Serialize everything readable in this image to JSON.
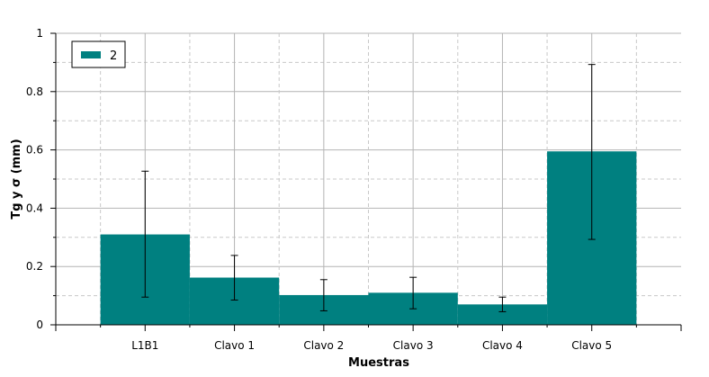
{
  "chart_data": {
    "type": "bar",
    "title": "",
    "xlabel": "Muestras",
    "ylabel": "Tg  y σ (mm)",
    "categories": [
      "L1B1",
      "Clavo 1",
      "Clavo 2",
      "Clavo 3",
      "Clavo 4",
      "Clavo 5"
    ],
    "series": [
      {
        "name": "2",
        "color": "#008080",
        "values": [
          0.31,
          0.162,
          0.102,
          0.11,
          0.07,
          0.595
        ],
        "error_low": [
          0.095,
          0.085,
          0.048,
          0.055,
          0.045,
          0.293
        ],
        "error_high": [
          0.527,
          0.238,
          0.155,
          0.163,
          0.095,
          0.893
        ]
      }
    ],
    "ylim": [
      0,
      1
    ],
    "yticks": [
      "0",
      "0.2",
      "0.4",
      "0.6",
      "0.8",
      "1"
    ],
    "grid": true,
    "legend_position": "top-left"
  }
}
